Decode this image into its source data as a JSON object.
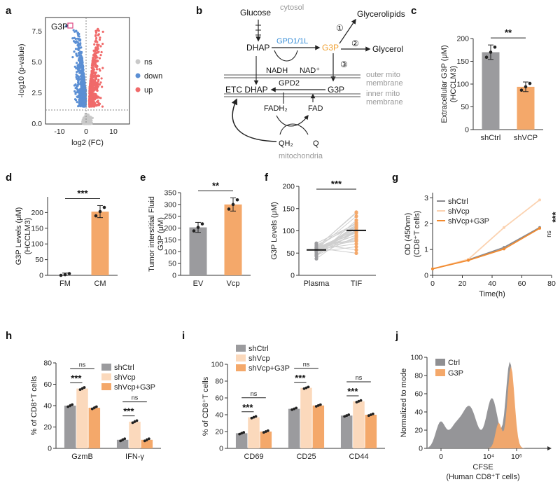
{
  "colors": {
    "grey": "#9b9b9e",
    "peach": "#fbd9bc",
    "orange": "#f4a86a",
    "blue": "#5b8fd4",
    "red": "#f06a6a",
    "lightgrey": "#c9c9c9",
    "path_blue": "#3a8fd8",
    "path_orange": "#f0a030"
  },
  "panels": {
    "a": "a",
    "b": "b",
    "c": "c",
    "d": "d",
    "e": "e",
    "f": "f",
    "g": "g",
    "h": "h",
    "i": "i",
    "j": "j"
  },
  "pathway": {
    "glucose": "Glucose",
    "cytosol": "cytosol",
    "dhap": "DHAP",
    "gpd1": "GPD1/1L",
    "g3p": "G3P",
    "glycerolipids": "Glycerolipids",
    "glycerol": "Glycerol",
    "n1": "①",
    "n2": "②",
    "n3": "③",
    "nadh": "NADH",
    "nad": "NAD⁺",
    "outer_mito": "outer mito",
    "inner_mito": "inner mito",
    "membrane": "membrane",
    "etc_dhap": "ETC DHAP",
    "gpd2": "GPD2",
    "g3p_mito": "G3P",
    "fadh2": "FADH₂",
    "fad": "FAD",
    "qh2": "QH₂",
    "q": "Q",
    "mitochondria": "mitochondria"
  },
  "chart_data": [
    {
      "panel": "a",
      "type": "scatter",
      "title": "",
      "xlabel": "log2 (FC)",
      "ylabel": "-log10 (p-value)",
      "xlim": [
        -15,
        15
      ],
      "ylim": [
        0,
        8.6
      ],
      "xticks": [
        "-10",
        "0",
        "10"
      ],
      "yticks": [
        "0.0",
        "2.5",
        "5.0",
        "7.5"
      ],
      "legend": [
        "ns",
        "down",
        "up"
      ],
      "annotation": "G3P",
      "highlight_point": {
        "x": -7.5,
        "y": 7.9
      }
    },
    {
      "panel": "c",
      "type": "bar",
      "ylabel": "Extracellular G3P (μM)",
      "ylabel2": "(HCCLM3)",
      "categories": [
        "shCtrl",
        "shVCP"
      ],
      "values": [
        170,
        94
      ],
      "ylim": [
        0,
        200
      ],
      "yticks": [
        "0",
        "50",
        "100",
        "150",
        "200"
      ],
      "significance": "**"
    },
    {
      "panel": "d",
      "type": "bar",
      "ylabel": "G3P Levels (μM)",
      "ylabel2": "(HCCLM3)",
      "categories": [
        "FM",
        "CM"
      ],
      "values": [
        2,
        203
      ],
      "ylim": [
        0,
        250
      ],
      "yticks": [
        "0",
        "50",
        "100",
        "150",
        "200"
      ],
      "significance": "***"
    },
    {
      "panel": "e",
      "type": "bar",
      "ylabel": "Tumor interstitial Fluid",
      "ylabel2": "G3P (μM)",
      "categories": [
        "EV",
        "Vcp"
      ],
      "values": [
        203,
        300
      ],
      "ylim": [
        0,
        350
      ],
      "yticks": [
        "0",
        "50",
        "100",
        "150",
        "200",
        "250",
        "300",
        "350"
      ],
      "significance": "**"
    },
    {
      "panel": "f",
      "type": "scatter",
      "ylabel": "G3P Levels (μM)",
      "categories": [
        "Plasma",
        "TIF"
      ],
      "medians": [
        57,
        101
      ],
      "ylim": [
        0,
        200
      ],
      "yticks": [
        "0",
        "50",
        "100",
        "150",
        "200"
      ],
      "significance": "***"
    },
    {
      "panel": "g",
      "type": "line",
      "xlabel": "Time(h)",
      "ylabel": "OD (450nm)",
      "ylabel2": "(CD8⁺T cells)",
      "x": [
        0,
        24,
        48,
        72
      ],
      "xlim": [
        0,
        80
      ],
      "ylim": [
        0,
        3.2
      ],
      "xticks": [
        "0",
        "20",
        "40",
        "60",
        "80"
      ],
      "yticks": [
        "0",
        "1",
        "2",
        "3"
      ],
      "series": [
        {
          "name": "shCtrl",
          "values": [
            0.25,
            0.6,
            1.08,
            1.85
          ]
        },
        {
          "name": "shVcp",
          "values": [
            0.25,
            0.62,
            1.85,
            2.92
          ]
        },
        {
          "name": "shVcp+G3P",
          "values": [
            0.25,
            0.58,
            1.02,
            1.82
          ]
        }
      ],
      "sig_ns": "ns",
      "sig_star": "***"
    },
    {
      "panel": "h",
      "type": "bar",
      "ylabel": "% of CD8⁺T cells",
      "categories": [
        "GzmB",
        "IFN-γ"
      ],
      "series": [
        {
          "name": "shCtrl",
          "values": [
            40,
            8
          ]
        },
        {
          "name": "shVcp",
          "values": [
            56,
            25
          ]
        },
        {
          "name": "shVcp+G3P",
          "values": [
            38,
            8
          ]
        }
      ],
      "ylim": [
        0,
        80
      ],
      "yticks": [
        "0",
        "20",
        "40",
        "60",
        "80"
      ],
      "sig_stars": [
        "***",
        "***"
      ],
      "sig_ns": [
        "ns",
        "ns"
      ]
    },
    {
      "panel": "i",
      "type": "bar",
      "ylabel": "% of CD8⁺T cells",
      "categories": [
        "CD69",
        "CD25",
        "CD44"
      ],
      "series": [
        {
          "name": "shCtrl",
          "values": [
            18,
            47,
            39
          ]
        },
        {
          "name": "shVcp",
          "values": [
            37,
            72,
            56
          ]
        },
        {
          "name": "shVcp+G3P",
          "values": [
            20,
            51,
            40
          ]
        }
      ],
      "ylim": [
        0,
        100
      ],
      "yticks": [
        "0",
        "20",
        "40",
        "60",
        "80",
        "100"
      ],
      "sig_stars": [
        "***",
        "***",
        "***"
      ],
      "sig_ns": [
        "ns",
        "ns",
        "ns"
      ]
    },
    {
      "panel": "j",
      "type": "area",
      "ylabel": "Normalized to mode",
      "xlabel": "CFSE",
      "xlabel2": "(Human CD8⁺T cells)",
      "ylim": [
        0,
        100
      ],
      "yticks": [
        "0",
        "20",
        "40",
        "60",
        "80",
        "100"
      ],
      "xticks": [
        "0",
        "10⁴",
        "10⁶"
      ],
      "legend": [
        "Ctrl",
        "G3P"
      ]
    }
  ]
}
